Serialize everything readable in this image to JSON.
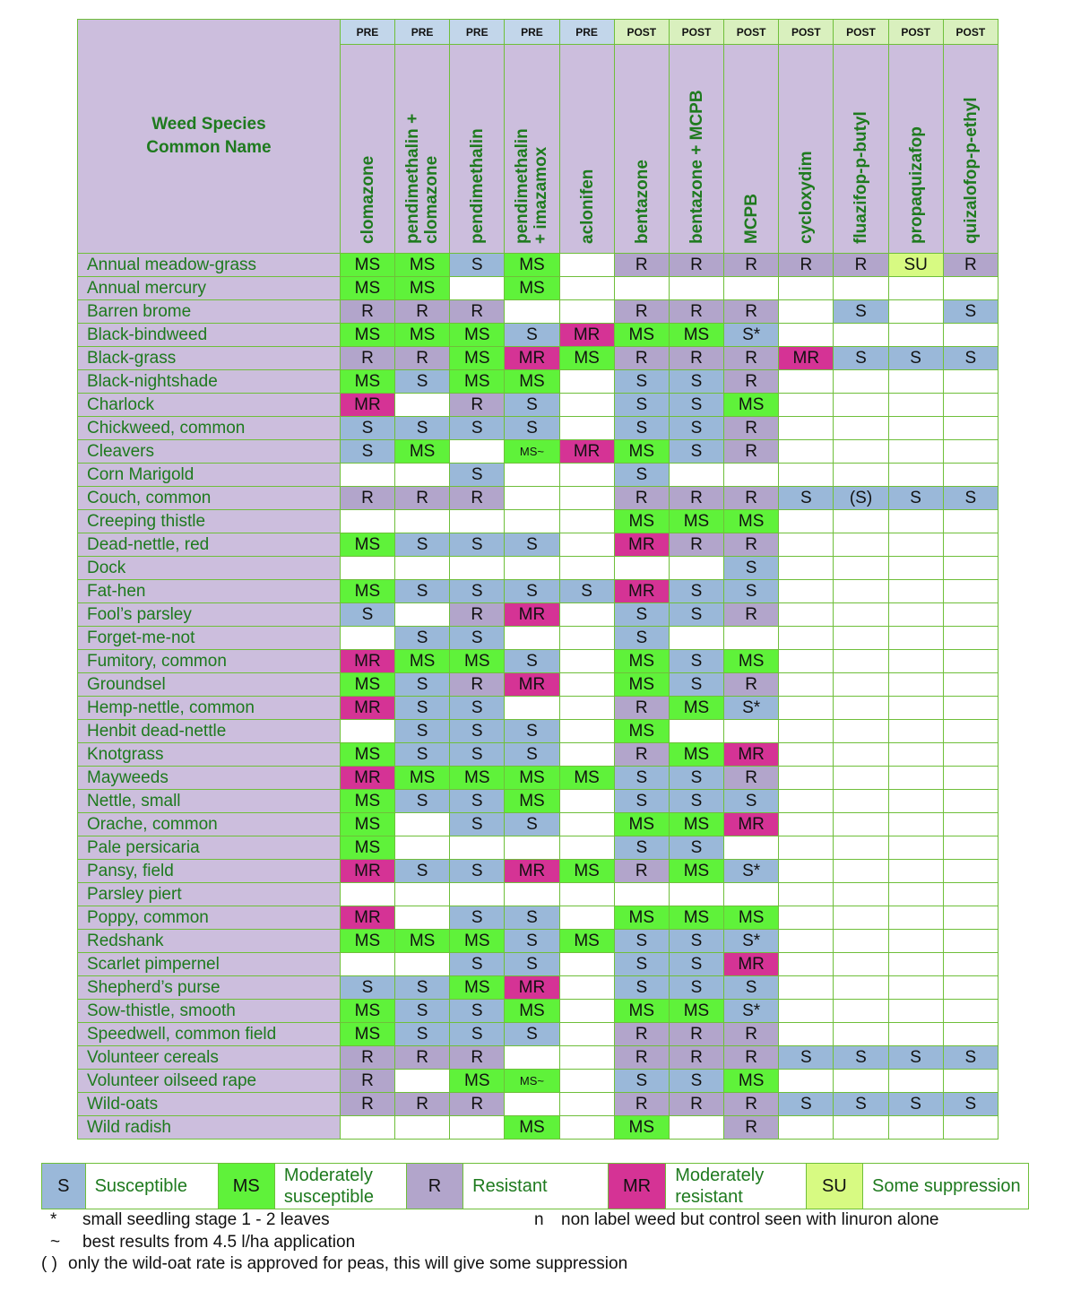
{
  "corner_label": [
    "Weed Species",
    "Common Name"
  ],
  "herbicides": [
    {
      "timing": "PRE",
      "name": [
        "clomazone"
      ]
    },
    {
      "timing": "PRE",
      "name": [
        "pendimethalin +",
        "clomazone"
      ]
    },
    {
      "timing": "PRE",
      "name": [
        "pendimethalin"
      ]
    },
    {
      "timing": "PRE",
      "name": [
        "pendimethalin",
        "+ imazamox"
      ]
    },
    {
      "timing": "PRE",
      "name": [
        "aclonifen"
      ]
    },
    {
      "timing": "POST",
      "name": [
        "bentazone"
      ]
    },
    {
      "timing": "POST",
      "name": [
        "bentazone + MCPB"
      ]
    },
    {
      "timing": "POST",
      "name": [
        "MCPB"
      ]
    },
    {
      "timing": "POST",
      "name": [
        "cycloxydim"
      ]
    },
    {
      "timing": "POST",
      "name": [
        "fluazifop-p-butyl"
      ]
    },
    {
      "timing": "POST",
      "name": [
        "propaquizafop"
      ]
    },
    {
      "timing": "POST",
      "name": [
        "quizalofop-p-ethyl"
      ]
    }
  ],
  "rows": [
    {
      "weed": "Annual meadow-grass",
      "values": [
        "MS",
        "MS",
        "S",
        "MS",
        "",
        "R",
        "R",
        "R",
        "R",
        "R",
        "SU",
        "R"
      ]
    },
    {
      "weed": "Annual mercury",
      "values": [
        "MS",
        "MS",
        "",
        "MS",
        "",
        "",
        "",
        "",
        "",
        "",
        "",
        ""
      ]
    },
    {
      "weed": "Barren brome",
      "values": [
        "R",
        "R",
        "R",
        "",
        "",
        "R",
        "R",
        "R",
        "",
        "S",
        "",
        "S"
      ]
    },
    {
      "weed": "Black-bindweed",
      "values": [
        "MS",
        "MS",
        "MS",
        "S",
        "MR",
        "MS",
        "MS",
        "S*",
        "",
        "",
        "",
        ""
      ]
    },
    {
      "weed": "Black-grass",
      "values": [
        "R",
        "R",
        "MS",
        "MR",
        "MS",
        "R",
        "R",
        "R",
        "MR",
        "S",
        "S",
        "S"
      ]
    },
    {
      "weed": "Black-nightshade",
      "values": [
        "MS",
        "S",
        "MS",
        "MS",
        "",
        "S",
        "S",
        "R",
        "",
        "",
        "",
        ""
      ]
    },
    {
      "weed": "Charlock",
      "values": [
        "MR",
        "",
        "R",
        "S",
        "",
        "S",
        "S",
        "MS",
        "",
        "",
        "",
        ""
      ]
    },
    {
      "weed": "Chickweed, common",
      "values": [
        "S",
        "S",
        "S",
        "S",
        "",
        "S",
        "S",
        "R",
        "",
        "",
        "",
        ""
      ]
    },
    {
      "weed": "Cleavers",
      "values": [
        "S",
        "MS",
        "",
        "MS~",
        "MR",
        "MS",
        "S",
        "R",
        "",
        "",
        "",
        ""
      ]
    },
    {
      "weed": "Corn Marigold",
      "values": [
        "",
        "",
        "S",
        "",
        "",
        "S",
        "",
        "",
        "",
        "",
        "",
        ""
      ]
    },
    {
      "weed": "Couch, common",
      "values": [
        "R",
        "R",
        "R",
        "",
        "",
        "R",
        "R",
        "R",
        "S",
        "(S)",
        "S",
        "S"
      ]
    },
    {
      "weed": "Creeping thistle",
      "values": [
        "",
        "",
        "",
        "",
        "",
        "MS",
        "MS",
        "MS",
        "",
        "",
        "",
        ""
      ]
    },
    {
      "weed": "Dead-nettle, red",
      "values": [
        "MS",
        "S",
        "S",
        "S",
        "",
        "MR",
        "R",
        "R",
        "",
        "",
        "",
        ""
      ]
    },
    {
      "weed": "Dock",
      "values": [
        "",
        "",
        "",
        "",
        "",
        "",
        "",
        "S",
        "",
        "",
        "",
        ""
      ]
    },
    {
      "weed": "Fat-hen",
      "values": [
        "MS",
        "S",
        "S",
        "S",
        "S",
        "MR",
        "S",
        "S",
        "",
        "",
        "",
        ""
      ]
    },
    {
      "weed": "Fool’s parsley",
      "values": [
        "S",
        "",
        "R",
        "MR",
        "",
        "S",
        "S",
        "R",
        "",
        "",
        "",
        ""
      ]
    },
    {
      "weed": "Forget-me-not",
      "values": [
        "",
        "S",
        "S",
        "",
        "",
        "S",
        "",
        "",
        "",
        "",
        "",
        ""
      ]
    },
    {
      "weed": "Fumitory, common",
      "values": [
        "MR",
        "MS",
        "MS",
        "S",
        "",
        "MS",
        "S",
        "MS",
        "",
        "",
        "",
        ""
      ]
    },
    {
      "weed": "Groundsel",
      "values": [
        "MS",
        "S",
        "R",
        "MR",
        "",
        "MS",
        "S",
        "R",
        "",
        "",
        "",
        ""
      ]
    },
    {
      "weed": "Hemp-nettle, common",
      "values": [
        "MR",
        "S",
        "S",
        "",
        "",
        "R",
        "MS",
        "S*",
        "",
        "",
        "",
        ""
      ]
    },
    {
      "weed": "Henbit dead-nettle",
      "values": [
        "",
        "S",
        "S",
        "S",
        "",
        "MS",
        "",
        "",
        "",
        "",
        "",
        ""
      ]
    },
    {
      "weed": "Knotgrass",
      "values": [
        "MS",
        "S",
        "S",
        "S",
        "",
        "R",
        "MS",
        "MR",
        "",
        "",
        "",
        ""
      ]
    },
    {
      "weed": "Mayweeds",
      "values": [
        "MR",
        "MS",
        "MS",
        "MS",
        "MS",
        "S",
        "S",
        "R",
        "",
        "",
        "",
        ""
      ]
    },
    {
      "weed": "Nettle, small",
      "values": [
        "MS",
        "S",
        "S",
        "MS",
        "",
        "S",
        "S",
        "S",
        "",
        "",
        "",
        ""
      ]
    },
    {
      "weed": "Orache, common",
      "values": [
        "MS",
        "",
        "S",
        "S",
        "",
        "MS",
        "MS",
        "MR",
        "",
        "",
        "",
        ""
      ]
    },
    {
      "weed": "Pale persicaria",
      "values": [
        "MS",
        "",
        "",
        "",
        "",
        "S",
        "S",
        "",
        "",
        "",
        "",
        ""
      ]
    },
    {
      "weed": "Pansy, field",
      "values": [
        "MR",
        "S",
        "S",
        "MR",
        "MS",
        "R",
        "MS",
        "S*",
        "",
        "",
        "",
        ""
      ]
    },
    {
      "weed": "Parsley piert",
      "values": [
        "",
        "",
        "",
        "",
        "",
        "",
        "",
        "",
        "",
        "",
        "",
        ""
      ]
    },
    {
      "weed": "Poppy, common",
      "values": [
        "MR",
        "",
        "S",
        "S",
        "",
        "MS",
        "MS",
        "MS",
        "",
        "",
        "",
        ""
      ]
    },
    {
      "weed": "Redshank",
      "values": [
        "MS",
        "MS",
        "MS",
        "S",
        "MS",
        "S",
        "S",
        "S*",
        "",
        "",
        "",
        ""
      ]
    },
    {
      "weed": "Scarlet pimpernel",
      "values": [
        "",
        "",
        "S",
        "S",
        "",
        "S",
        "S",
        "MR",
        "",
        "",
        "",
        ""
      ]
    },
    {
      "weed": "Shepherd’s purse",
      "values": [
        "S",
        "S",
        "MS",
        "MR",
        "",
        "S",
        "S",
        "S",
        "",
        "",
        "",
        ""
      ]
    },
    {
      "weed": "Sow-thistle, smooth",
      "values": [
        "MS",
        "S",
        "S",
        "MS",
        "",
        "MS",
        "MS",
        "S*",
        "",
        "",
        "",
        ""
      ]
    },
    {
      "weed": "Speedwell, common field",
      "values": [
        "MS",
        "S",
        "S",
        "S",
        "",
        "R",
        "R",
        "R",
        "",
        "",
        "",
        ""
      ]
    },
    {
      "weed": "Volunteer cereals",
      "values": [
        "R",
        "R",
        "R",
        "",
        "",
        "R",
        "R",
        "R",
        "S",
        "S",
        "S",
        "S"
      ]
    },
    {
      "weed": "Volunteer oilseed rape",
      "values": [
        "R",
        "",
        "MS",
        "MS~",
        "",
        "S",
        "S",
        "MS",
        "",
        "",
        "",
        ""
      ]
    },
    {
      "weed": "Wild-oats",
      "values": [
        "R",
        "R",
        "R",
        "",
        "",
        "R",
        "R",
        "R",
        "S",
        "S",
        "S",
        "S"
      ]
    },
    {
      "weed": "Wild radish",
      "values": [
        "",
        "",
        "",
        "MS",
        "",
        "MS",
        "",
        "R",
        "",
        "",
        "",
        ""
      ]
    }
  ],
  "legend": [
    {
      "code": "S",
      "label": "Susceptible"
    },
    {
      "code": "MS",
      "label": "Moderately susceptible"
    },
    {
      "code": "R",
      "label": "Resistant"
    },
    {
      "code": "MR",
      "label": "Moderately resistant"
    },
    {
      "code": "SU",
      "label": "Some suppression"
    }
  ],
  "colors": {
    "S": "#9ab8d9",
    "MS": "#5ff23a",
    "R": "#b2a5cb",
    "MR": "#d53395",
    "SU": "#d7fa82",
    "header_bg": "#ccbedd",
    "pre_bg": "#c2d6ea",
    "post_bg": "#d9f0be",
    "grid": "#6fbf3a",
    "label_text": "#1e7a1e"
  },
  "footnotes": {
    "asterisk": {
      "symbol": "*",
      "text": "small seedling stage 1 - 2 leaves"
    },
    "n": {
      "symbol": "n",
      "text": "non label weed but control seen with linuron alone"
    },
    "tilde": {
      "symbol": "~",
      "text": "best results from 4.5 l/ha application"
    },
    "paren": {
      "symbol": "( )",
      "text": "only the wild-oat rate is approved for peas, this will give some suppression"
    }
  }
}
